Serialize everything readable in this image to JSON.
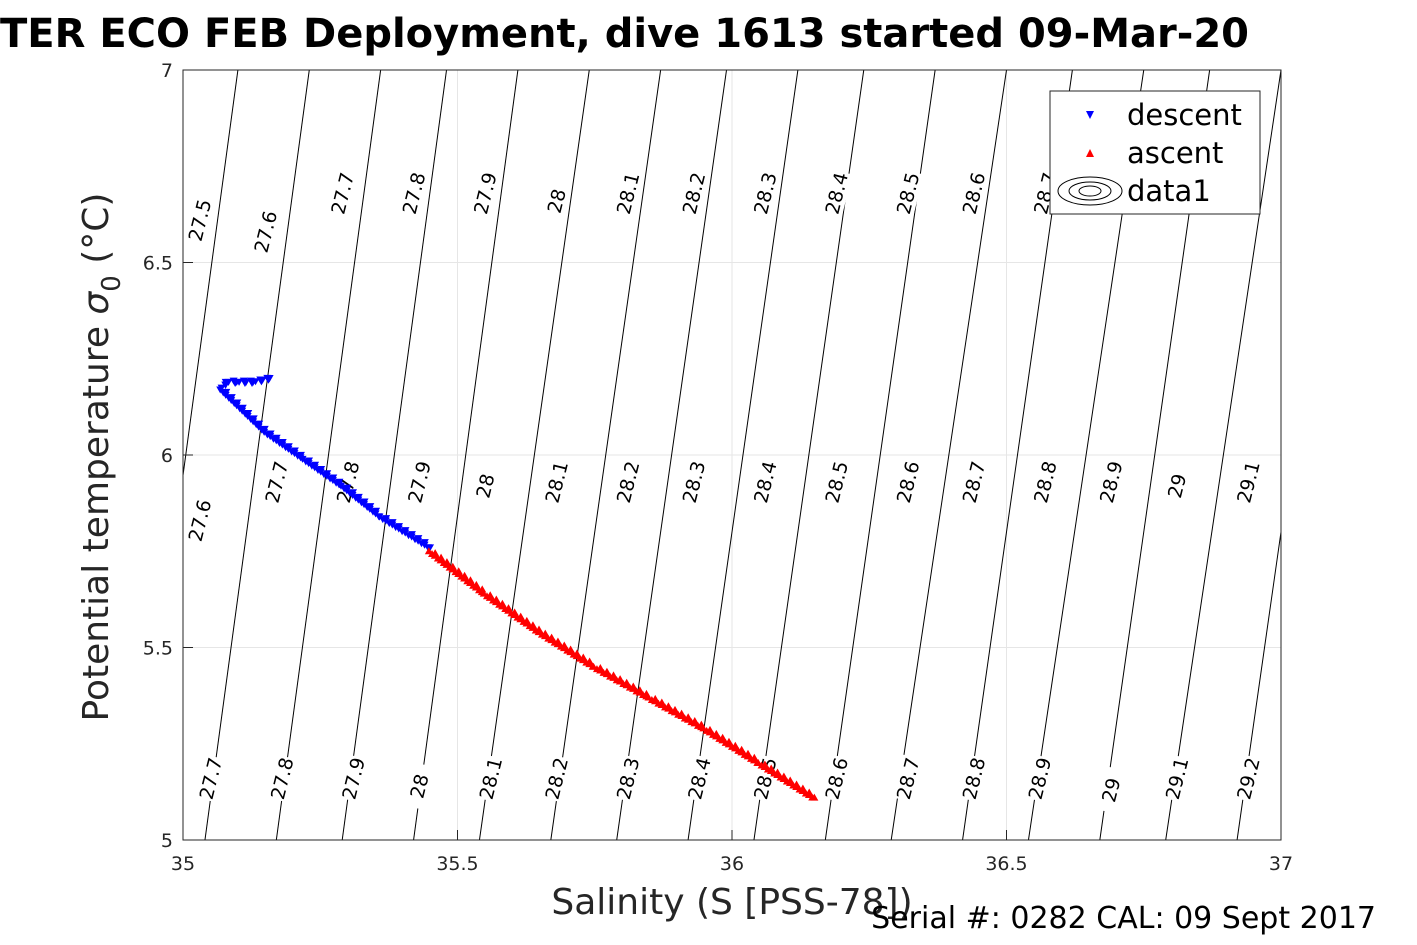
{
  "chart_data": {
    "type": "scatter",
    "title": "TER ECO FEB Deployment, dive 1613 started 09-Mar-20",
    "xlabel": "Salinity (S [PSS-78])",
    "ylabel": "Potential temperature",
    "ylabel_symbol": "σ",
    "ylabel_subscript": "0",
    "ylabel_unit": "(°C)",
    "xlim": [
      35,
      37
    ],
    "ylim": [
      5,
      7
    ],
    "x_ticks": [
      "35",
      "35.5",
      "36",
      "36.5",
      "37"
    ],
    "y_ticks": [
      "5",
      "5.5",
      "6",
      "6.5",
      "7"
    ],
    "grid": true,
    "legend_position": "top-right",
    "legend": [
      {
        "label": "descent",
        "marker": "triangle-down",
        "color": "#0000ff"
      },
      {
        "label": "ascent",
        "marker": "triangle-up",
        "color": "#ff0000"
      },
      {
        "label": "data1",
        "marker": "contour",
        "color": "#000000"
      }
    ],
    "series": [
      {
        "name": "descent",
        "color": "#0000ff",
        "marker": "triangle-down",
        "points": [
          [
            35.16,
            6.2
          ],
          [
            35.13,
            6.19
          ],
          [
            35.1,
            6.19
          ],
          [
            35.08,
            6.19
          ],
          [
            35.07,
            6.17
          ],
          [
            35.15,
            6.06
          ],
          [
            35.22,
            5.99
          ],
          [
            35.29,
            5.92
          ],
          [
            35.36,
            5.84
          ],
          [
            35.45,
            5.76
          ]
        ]
      },
      {
        "name": "ascent",
        "color": "#ff0000",
        "marker": "triangle-up",
        "points": [
          [
            35.45,
            5.75
          ],
          [
            35.55,
            5.64
          ],
          [
            35.65,
            5.54
          ],
          [
            35.75,
            5.45
          ],
          [
            35.85,
            5.37
          ],
          [
            35.95,
            5.29
          ],
          [
            36.05,
            5.2
          ],
          [
            36.15,
            5.11
          ]
        ]
      }
    ],
    "contours": {
      "label": "data1",
      "color": "#000000",
      "levels": [
        "27.5",
        "27.6",
        "27.7",
        "27.8",
        "27.9",
        "28",
        "28.1",
        "28.2",
        "28.3",
        "28.4",
        "28.5",
        "28.6",
        "28.7",
        "28.8",
        "28.9",
        "29",
        "29.1",
        "29.2"
      ],
      "labels_top": [
        {
          "text": "27.5",
          "x": 35.03,
          "y": 6.61
        },
        {
          "text": "27.6",
          "x": 35.15,
          "y": 6.58
        },
        {
          "text": "27.7",
          "x": 35.29,
          "y": 6.68
        },
        {
          "text": "27.8",
          "x": 35.42,
          "y": 6.68
        },
        {
          "text": "27.9",
          "x": 35.55,
          "y": 6.68
        },
        {
          "text": "28",
          "x": 35.68,
          "y": 6.66
        },
        {
          "text": "28.1",
          "x": 35.81,
          "y": 6.68
        },
        {
          "text": "28.2",
          "x": 35.93,
          "y": 6.68
        },
        {
          "text": "28.3",
          "x": 36.06,
          "y": 6.68
        },
        {
          "text": "28.4",
          "x": 36.19,
          "y": 6.68
        },
        {
          "text": "28.5",
          "x": 36.32,
          "y": 6.68
        },
        {
          "text": "28.6",
          "x": 36.44,
          "y": 6.68
        },
        {
          "text": "28.7",
          "x": 36.57,
          "y": 6.68
        }
      ],
      "labels_middle": [
        {
          "text": "27.6",
          "x": 35.03,
          "y": 5.83
        },
        {
          "text": "27.7",
          "x": 35.17,
          "y": 5.93
        },
        {
          "text": "27.8",
          "x": 35.3,
          "y": 5.93
        },
        {
          "text": "27.9",
          "x": 35.43,
          "y": 5.93
        },
        {
          "text": "28",
          "x": 35.55,
          "y": 5.92
        },
        {
          "text": "28.1",
          "x": 35.68,
          "y": 5.93
        },
        {
          "text": "28.2",
          "x": 35.81,
          "y": 5.93
        },
        {
          "text": "28.3",
          "x": 35.93,
          "y": 5.93
        },
        {
          "text": "28.4",
          "x": 36.06,
          "y": 5.93
        },
        {
          "text": "28.5",
          "x": 36.19,
          "y": 5.93
        },
        {
          "text": "28.6",
          "x": 36.32,
          "y": 5.93
        },
        {
          "text": "28.7",
          "x": 36.44,
          "y": 5.93
        },
        {
          "text": "28.8",
          "x": 36.57,
          "y": 5.93
        },
        {
          "text": "28.9",
          "x": 36.69,
          "y": 5.93
        },
        {
          "text": "29",
          "x": 36.81,
          "y": 5.92
        },
        {
          "text": "29.1",
          "x": 36.94,
          "y": 5.93
        }
      ],
      "labels_bottom": [
        {
          "text": "27.7",
          "x": 35.05,
          "y": 5.16
        },
        {
          "text": "27.8",
          "x": 35.18,
          "y": 5.16
        },
        {
          "text": "27.9",
          "x": 35.31,
          "y": 5.16
        },
        {
          "text": "28",
          "x": 35.43,
          "y": 5.14
        },
        {
          "text": "28.1",
          "x": 35.56,
          "y": 5.16
        },
        {
          "text": "28.2",
          "x": 35.68,
          "y": 5.16
        },
        {
          "text": "28.3",
          "x": 35.81,
          "y": 5.16
        },
        {
          "text": "28.4",
          "x": 35.94,
          "y": 5.16
        },
        {
          "text": "28.5",
          "x": 36.06,
          "y": 5.16
        },
        {
          "text": "28.6",
          "x": 36.19,
          "y": 5.16
        },
        {
          "text": "28.7",
          "x": 36.32,
          "y": 5.16
        },
        {
          "text": "28.8",
          "x": 36.44,
          "y": 5.16
        },
        {
          "text": "28.9",
          "x": 36.56,
          "y": 5.16
        },
        {
          "text": "29",
          "x": 36.69,
          "y": 5.13
        },
        {
          "text": "29.1",
          "x": 36.81,
          "y": 5.16
        },
        {
          "text": "29.2",
          "x": 36.94,
          "y": 5.16
        }
      ],
      "lines": [
        {
          "x_top": 34.98,
          "x_bottom": 34.79
        },
        {
          "x_top": 35.1,
          "x_bottom": 34.91
        },
        {
          "x_top": 35.23,
          "x_bottom": 35.04
        },
        {
          "x_top": 35.36,
          "x_bottom": 35.17
        },
        {
          "x_top": 35.48,
          "x_bottom": 35.29
        },
        {
          "x_top": 35.61,
          "x_bottom": 35.42
        },
        {
          "x_top": 35.74,
          "x_bottom": 35.54
        },
        {
          "x_top": 35.87,
          "x_bottom": 35.67
        },
        {
          "x_top": 35.99,
          "x_bottom": 35.79
        },
        {
          "x_top": 36.12,
          "x_bottom": 35.92
        },
        {
          "x_top": 36.24,
          "x_bottom": 36.04
        },
        {
          "x_top": 36.37,
          "x_bottom": 36.17
        },
        {
          "x_top": 36.5,
          "x_bottom": 36.29
        },
        {
          "x_top": 36.62,
          "x_bottom": 36.42
        },
        {
          "x_top": 36.75,
          "x_bottom": 36.54
        },
        {
          "x_top": 36.87,
          "x_bottom": 36.67
        },
        {
          "x_top": 37.0,
          "x_bottom": 36.79
        },
        {
          "x_top": 37.12,
          "x_bottom": 36.92
        },
        {
          "x_top": 37.25,
          "x_bottom": 37.04
        }
      ]
    }
  },
  "footer": {
    "serial": "Serial #: 0282  CAL: 09 Sept 2017"
  }
}
